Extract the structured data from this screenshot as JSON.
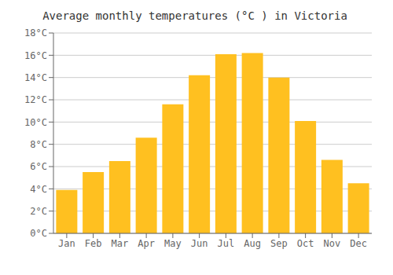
{
  "chart_data": {
    "type": "bar",
    "title": "Average monthly temperatures (°C ) in Victoria",
    "categories": [
      "Jan",
      "Feb",
      "Mar",
      "Apr",
      "May",
      "Jun",
      "Jul",
      "Aug",
      "Sep",
      "Oct",
      "Nov",
      "Dec"
    ],
    "values": [
      3.9,
      5.5,
      6.5,
      8.6,
      11.6,
      14.2,
      16.1,
      16.2,
      14.0,
      10.1,
      6.6,
      4.5
    ],
    "color": "#FFC020",
    "ylim": [
      0,
      18
    ],
    "yticks": [
      {
        "value": 0,
        "label": "0°C"
      },
      {
        "value": 2,
        "label": "2°C"
      },
      {
        "value": 4,
        "label": "4°C"
      },
      {
        "value": 6,
        "label": "6°C"
      },
      {
        "value": 8,
        "label": "8°C"
      },
      {
        "value": 10,
        "label": "10°C"
      },
      {
        "value": 12,
        "label": "12°C"
      },
      {
        "value": 14,
        "label": "14°C"
      },
      {
        "value": 16,
        "label": "16°C"
      },
      {
        "value": 18,
        "label": "18°C"
      }
    ],
    "grid": true
  }
}
